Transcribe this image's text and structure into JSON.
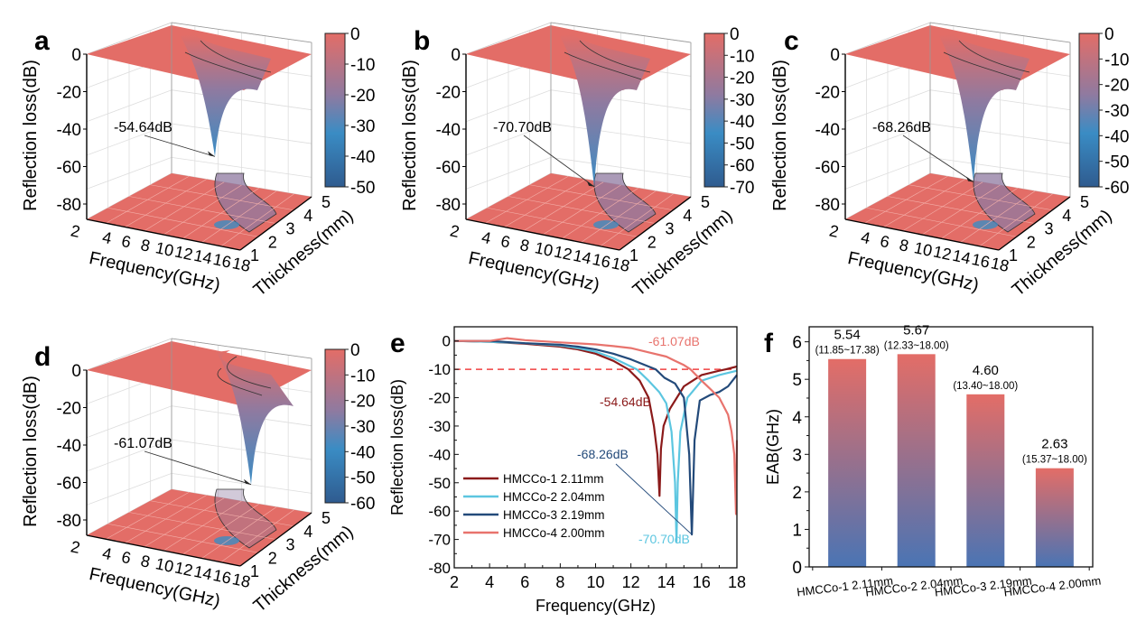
{
  "figure": {
    "panels_3d": [
      {
        "label": "a",
        "zlabel": "Reflection loss(dB)",
        "xlabel": "Frequency(GHz)",
        "ylabel": "Thickness(mm)",
        "z_ticks": [
          "0",
          "-20",
          "-40",
          "-60",
          "-80"
        ],
        "x_ticks": [
          "2",
          "4",
          "6",
          "8",
          "10",
          "12",
          "14",
          "16",
          "18"
        ],
        "y_ticks": [
          "1",
          "2",
          "3",
          "4",
          "5"
        ],
        "colorbar_ticks": [
          "0",
          "-10",
          "-20",
          "-30",
          "-40",
          "-50"
        ],
        "colorbar_range": [
          -50,
          0
        ],
        "annotation": "-54.64dB",
        "min_rl": -54.64
      },
      {
        "label": "b",
        "zlabel": "Reflection loss(dB)",
        "xlabel": "Frequency(GHz)",
        "ylabel": "Thickness(mm)",
        "z_ticks": [
          "0",
          "-20",
          "-40",
          "-60",
          "-80"
        ],
        "x_ticks": [
          "2",
          "4",
          "6",
          "8",
          "10",
          "12",
          "14",
          "16",
          "18"
        ],
        "y_ticks": [
          "1",
          "2",
          "3",
          "4",
          "5"
        ],
        "colorbar_ticks": [
          "0",
          "-10",
          "-20",
          "-30",
          "-40",
          "-50",
          "-60",
          "-70"
        ],
        "colorbar_range": [
          -70,
          0
        ],
        "annotation": "-70.70dB",
        "min_rl": -70.7
      },
      {
        "label": "c",
        "zlabel": "Reflection loss(dB)",
        "xlabel": "Frequency(GHz)",
        "ylabel": "Thickness(mm)",
        "z_ticks": [
          "0",
          "-20",
          "-40",
          "-60",
          "-80"
        ],
        "x_ticks": [
          "2",
          "4",
          "6",
          "8",
          "10",
          "12",
          "14",
          "16",
          "18"
        ],
        "y_ticks": [
          "1",
          "2",
          "3",
          "4",
          "5"
        ],
        "colorbar_ticks": [
          "0",
          "-10",
          "-20",
          "-30",
          "-40",
          "-50",
          "-60"
        ],
        "colorbar_range": [
          -60,
          0
        ],
        "annotation": "-68.26dB",
        "min_rl": -68.26
      },
      {
        "label": "d",
        "zlabel": "Reflection loss(dB)",
        "xlabel": "Frequency(GHz)",
        "ylabel": "Thickness(mm)",
        "z_ticks": [
          "0",
          "-20",
          "-40",
          "-60",
          "-80"
        ],
        "x_ticks": [
          "2",
          "4",
          "6",
          "8",
          "10",
          "12",
          "14",
          "16",
          "18"
        ],
        "y_ticks": [
          "1",
          "2",
          "3",
          "4",
          "5"
        ],
        "colorbar_ticks": [
          "0",
          "-10",
          "-20",
          "-30",
          "-40",
          "-50",
          "-60"
        ],
        "colorbar_range": [
          -60,
          0
        ],
        "annotation": "-61.07dB",
        "min_rl": -61.07
      }
    ],
    "colors": {
      "surface_high": "#e36d67",
      "surface_mid": "#8f7aa0",
      "surface_low": "#3a8cc4",
      "colorbar_bottom": "#2f5b8f",
      "hmcco1": "#8b1a1a",
      "hmcco2": "#5cc6e0",
      "hmcco3": "#234a7a",
      "hmcco4": "#e8736d",
      "threshold": "#f04040",
      "bar_top": "#e36d67",
      "bar_bottom": "#4a74b4"
    }
  },
  "chart_data": [
    {
      "panel": "e",
      "type": "line",
      "title": "",
      "xlabel": "Frequency(GHz)",
      "ylabel": "Reflection loss(dB)",
      "xlim": [
        2,
        18
      ],
      "ylim": [
        -80,
        5
      ],
      "x_ticks": [
        "2",
        "4",
        "6",
        "8",
        "10",
        "12",
        "14",
        "16",
        "18"
      ],
      "y_ticks": [
        "0",
        "-10",
        "-20",
        "-30",
        "-40",
        "-50",
        "-60",
        "-70",
        "-80"
      ],
      "threshold": -10,
      "legend_position": "lower-left",
      "series": [
        {
          "name": "HMCCo-1  2.11mm",
          "key": "hmcco1",
          "x": [
            2,
            4,
            6,
            8,
            9,
            10,
            11,
            11.85,
            12.5,
            13,
            13.3,
            13.5,
            13.62,
            13.7,
            13.85,
            14.2,
            15,
            16,
            17,
            17.38,
            18
          ],
          "y": [
            0,
            -0.3,
            -1,
            -2,
            -3,
            -4.5,
            -7,
            -10,
            -14,
            -20,
            -30,
            -40,
            -54.64,
            -38,
            -30,
            -24,
            -16,
            -12,
            -10.5,
            -10,
            -9
          ]
        },
        {
          "name": "HMCCo-2  2.04mm",
          "key": "hmcco2",
          "x": [
            2,
            4,
            6,
            8,
            9,
            10,
            11,
            12,
            12.33,
            13,
            13.6,
            14,
            14.3,
            14.5,
            14.58,
            14.65,
            14.8,
            15.2,
            16,
            17,
            18
          ],
          "y": [
            0,
            -0.3,
            -0.8,
            -1.6,
            -2.5,
            -3.8,
            -6,
            -9,
            -10,
            -14,
            -18,
            -22,
            -32,
            -50,
            -70.7,
            -50,
            -32,
            -20,
            -14,
            -12,
            -10.5
          ]
        },
        {
          "name": "HMCCo-3  2.19mm",
          "key": "hmcco3",
          "x": [
            2,
            4,
            6,
            8,
            9,
            10,
            11,
            12,
            13,
            13.4,
            13.9,
            14.5,
            15,
            15.3,
            15.45,
            15.6,
            15.9,
            16.5,
            17,
            17.5,
            18
          ],
          "y": [
            0,
            0,
            -0.8,
            -1.3,
            -2,
            -3,
            -4.5,
            -6.5,
            -9,
            -10,
            -13,
            -15,
            -20,
            -40,
            -68.26,
            -35,
            -21,
            -19,
            -18,
            -16,
            -12
          ]
        },
        {
          "name": "HMCCo-4  2.00mm",
          "key": "hmcco4",
          "x": [
            2,
            4,
            5,
            6,
            8,
            10,
            11,
            12,
            13,
            14,
            14.5,
            15,
            15.37,
            16,
            16.5,
            17,
            17.5,
            17.7,
            17.85,
            17.95,
            18
          ],
          "y": [
            0,
            0,
            1,
            0.3,
            -0.5,
            -1.2,
            -1.8,
            -2.5,
            -4,
            -5.5,
            -7,
            -8.5,
            -10,
            -14,
            -17,
            -20,
            -26,
            -32,
            -40,
            -61.07,
            -35
          ]
        }
      ],
      "annotations": [
        {
          "text": "-54.64dB",
          "key": "hmcco1"
        },
        {
          "text": "-70.70dB",
          "key": "hmcco2"
        },
        {
          "text": "-68.26dB",
          "key": "hmcco3"
        },
        {
          "text": "-61.07dB",
          "key": "hmcco4"
        }
      ]
    },
    {
      "panel": "f",
      "type": "bar",
      "title": "",
      "xlabel": "",
      "ylabel": "EAB(GHz)",
      "ylim": [
        0,
        6.4
      ],
      "y_ticks": [
        "0",
        "1",
        "2",
        "3",
        "4",
        "5",
        "6"
      ],
      "categories": [
        "HMCCo-1 2.11mm",
        "HMCCo-2 2.04mm",
        "HMCCo-3 2.19mm",
        "HMCCo-4 2.00mm"
      ],
      "values": [
        5.54,
        5.67,
        4.6,
        2.63
      ],
      "value_labels": [
        "5.54",
        "5.67",
        "4.60",
        "2.63"
      ],
      "range_labels": [
        "(11.85~17.38)",
        "(12.33~18.00)",
        "(13.40~18.00)",
        "(15.37~18.00)"
      ]
    }
  ],
  "labels": {
    "e": "e",
    "f": "f"
  }
}
